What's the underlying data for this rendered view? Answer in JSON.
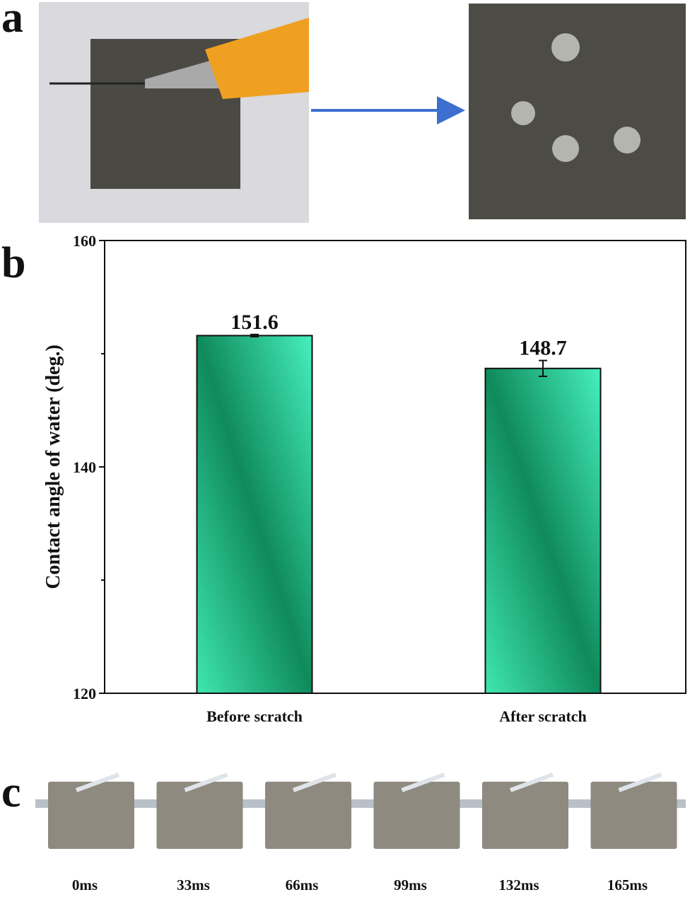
{
  "panel_labels": [
    "a",
    "b",
    "c"
  ],
  "chart_data": {
    "type": "bar",
    "y_label": "Contact angle of water (deg.)",
    "categories": [
      "Before scratch",
      "After scratch"
    ],
    "values": [
      151.6,
      148.7
    ],
    "errors": [
      0.1,
      0.7
    ],
    "ylim": [
      120,
      160
    ],
    "yticks": [
      120,
      140,
      160
    ],
    "minor_yticks": [
      130,
      150
    ],
    "color": "#1f9e6e"
  },
  "panel_c": {
    "labels": [
      "0ms",
      "33ms",
      "66ms",
      "99ms",
      "132ms",
      "165ms"
    ]
  }
}
